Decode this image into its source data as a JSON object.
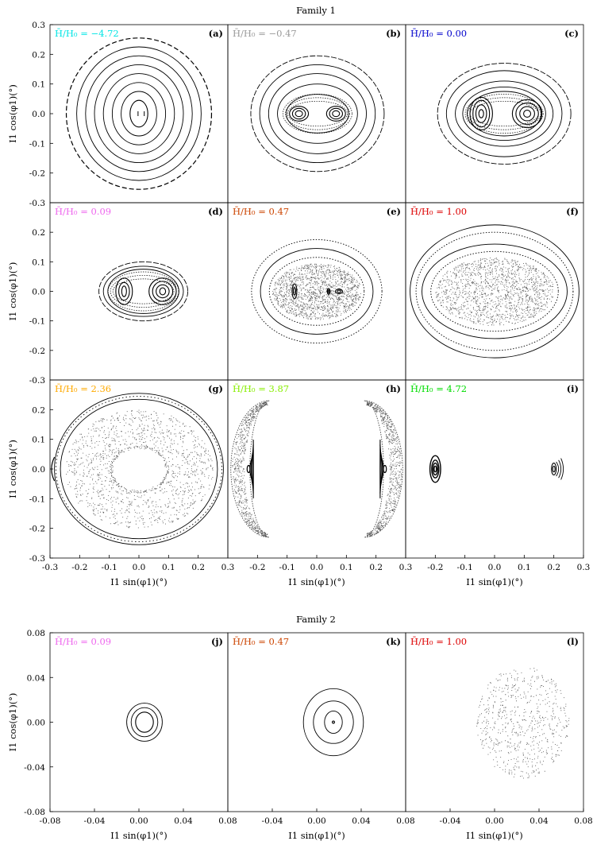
{
  "family1_title": "Family 1",
  "family2_title": "Family 2",
  "chart_data": [
    {
      "type": "scatter",
      "figure": "Family 1",
      "xlabel": "I1 sin(φ1)(°)",
      "ylabel": "I1 cos(φ1)(°)",
      "xlim": [
        -0.3,
        0.3
      ],
      "ylim": [
        -0.3,
        0.3
      ],
      "x_ticks": [
        "-0.3",
        "-0.2",
        "-0.1",
        "0.0",
        "0.1",
        "0.2",
        "0.3"
      ],
      "y_ticks": [
        "-0.3",
        "-0.2",
        "-0.1",
        "0.0",
        "0.1",
        "0.2",
        "0.3"
      ],
      "grid": false,
      "panels": [
        {
          "id": "a",
          "panel_label": "(a)",
          "title": "H̄/H₀ = −4.72",
          "energy": -4.72,
          "title_color": "#00e5e5",
          "kind": "centered",
          "center": [
            0,
            0
          ],
          "curves": [
            [
              0.03,
              0.045
            ],
            [
              0.06,
              0.075
            ],
            [
              0.09,
              0.105
            ],
            [
              0.12,
              0.135
            ],
            [
              0.15,
              0.165
            ],
            [
              0.18,
              0.195
            ],
            [
              0.21,
              0.225
            ]
          ],
          "outer_arcs": [
            [
              0.245,
              0.255
            ]
          ],
          "fixed_points": [
            [
              -0.003,
              0
            ],
            [
              0.018,
              0
            ]
          ]
        },
        {
          "id": "b",
          "panel_label": "(b)",
          "title": "H̄/H₀ = −0.47",
          "energy": -0.47,
          "title_color": "#9a9a9a",
          "kind": "two_island",
          "left": [
            -0.06,
            0
          ],
          "right": [
            0.065,
            0
          ],
          "island_left": [
            [
              0.012,
              0.01
            ],
            [
              0.022,
              0.018
            ],
            [
              0.032,
              0.025
            ]
          ],
          "island_right": [
            [
              0.012,
              0.01
            ],
            [
              0.022,
              0.018
            ],
            [
              0.032,
              0.025
            ]
          ],
          "curves": [
            [
              0.105,
              0.065
            ],
            [
              0.135,
              0.1
            ],
            [
              0.165,
              0.135
            ],
            [
              0.195,
              0.165
            ],
            [
              0.225,
              0.195
            ]
          ]
        },
        {
          "id": "c",
          "panel_label": "(c)",
          "title": "H̄/H₀ = 0.00",
          "energy": 0.0,
          "title_color": "#0000cc",
          "kind": "two_island",
          "left": [
            -0.045,
            0
          ],
          "right": [
            0.11,
            0
          ],
          "island_left": [
            [
              0.008,
              0.014
            ],
            [
              0.018,
              0.03
            ],
            [
              0.028,
              0.045
            ],
            [
              0.038,
              0.055
            ]
          ],
          "island_right": [
            [
              0.012,
              0.012
            ],
            [
              0.025,
              0.024
            ],
            [
              0.038,
              0.036
            ],
            [
              0.05,
              0.047
            ]
          ],
          "curves": [
            [
              0.125,
              0.075
            ],
            [
              0.14,
              0.09
            ],
            [
              0.165,
              0.11
            ],
            [
              0.195,
              0.145
            ],
            [
              0.225,
              0.17
            ]
          ]
        },
        {
          "id": "d",
          "panel_label": "(d)",
          "title": "H̄/H₀ = 0.09",
          "energy": 0.09,
          "title_color": "#ee66ee",
          "kind": "two_island",
          "left": [
            -0.05,
            0
          ],
          "right": [
            0.08,
            0
          ],
          "island_left": [
            [
              0.008,
              0.018
            ],
            [
              0.018,
              0.03
            ],
            [
              0.028,
              0.045
            ]
          ],
          "island_right": [
            [
              0.01,
              0.012
            ],
            [
              0.022,
              0.022
            ],
            [
              0.034,
              0.034
            ],
            [
              0.046,
              0.045
            ]
          ],
          "curves": [
            [
              0.12,
              0.075
            ],
            [
              0.135,
              0.085
            ],
            [
              0.15,
              0.1
            ]
          ]
        },
        {
          "id": "e",
          "panel_label": "(e)",
          "title": "H̄/H₀ = 0.47",
          "energy": 0.47,
          "title_color": "#cc4400",
          "kind": "chaos",
          "chaos_center": [
            0.0,
            0
          ],
          "chaos_r": [
            0.15,
            0.095
          ],
          "islands": [
            [
              -0.075,
              0,
              0.008,
              0.025
            ],
            [
              0.04,
              0,
              0.005,
              0.01
            ],
            [
              0.075,
              0,
              0.012,
              0.008
            ]
          ],
          "curves": [
            [
              0.16,
              0.115
            ],
            [
              0.19,
              0.145
            ],
            [
              0.22,
              0.175
            ]
          ]
        },
        {
          "id": "f",
          "panel_label": "(f)",
          "title": "H̄/H₀ = 1.00",
          "energy": 1.0,
          "title_color": "#dd0000",
          "kind": "chaos",
          "chaos_center": [
            0.0,
            0
          ],
          "chaos_r": [
            0.2,
            0.115
          ],
          "islands": [],
          "curves": [
            [
              0.215,
              0.135
            ],
            [
              0.245,
              0.16
            ],
            [
              0.265,
              0.2
            ],
            [
              0.285,
              0.225
            ]
          ]
        },
        {
          "id": "g",
          "panel_label": "(g)",
          "title": "H̄/H₀ = 2.36",
          "energy": 2.36,
          "title_color": "#ffaa00",
          "kind": "ring_chaos",
          "chaos_center": [
            0.0,
            0
          ],
          "chaos_r": [
            0.25,
            0.2
          ],
          "curves": [
            [
              0.265,
              0.235
            ],
            [
              0.28,
              0.245
            ],
            [
              0.285,
              0.255
            ]
          ],
          "edge_arc": [
            -0.29,
            0
          ]
        },
        {
          "id": "h",
          "panel_label": "(h)",
          "title": "H̄/H₀ = 3.87",
          "energy": 3.87,
          "title_color": "#88ee00",
          "kind": "crescents",
          "left": [
            -0.16,
            0
          ],
          "right": [
            0.16,
            0
          ]
        },
        {
          "id": "i",
          "panel_label": "(i)",
          "title": "H̄/H₀ = 4.72",
          "energy": 4.72,
          "title_color": "#00dd00",
          "kind": "two_small",
          "left": [
            -0.2,
            0
          ],
          "right": [
            0.2,
            0
          ],
          "island_left": [
            [
              0.004,
              0.01
            ],
            [
              0.008,
              0.02
            ],
            [
              0.012,
              0.03
            ],
            [
              0.018,
              0.045
            ]
          ],
          "island_right": [
            [
              0.004,
              0.01
            ],
            [
              0.008,
              0.02
            ]
          ]
        }
      ]
    },
    {
      "type": "scatter",
      "figure": "Family 2",
      "xlabel": "I1 sin(φ1)(°)",
      "ylabel": "I1 cos(φ1)(°)",
      "xlim": [
        -0.08,
        0.08
      ],
      "ylim": [
        -0.08,
        0.08
      ],
      "x_ticks": [
        "-0.08",
        "-0.04",
        "0.00",
        "0.04",
        "0.08"
      ],
      "y_ticks": [
        "-0.08",
        "-0.04",
        "0.00",
        "0.04",
        "0.08"
      ],
      "grid": false,
      "panels": [
        {
          "id": "j",
          "panel_label": "(j)",
          "title": "H̄/H₀ = 0.09",
          "energy": 0.09,
          "title_color": "#ee66ee",
          "kind": "centered",
          "center": [
            0.005,
            0
          ],
          "curves": [
            [
              0.008,
              0.009
            ],
            [
              0.012,
              0.013
            ],
            [
              0.016,
              0.017
            ]
          ]
        },
        {
          "id": "k",
          "panel_label": "(k)",
          "title": "H̄/H₀ = 0.47",
          "energy": 0.47,
          "title_color": "#cc4400",
          "kind": "centered",
          "center": [
            0.015,
            0
          ],
          "curves": [
            [
              0.001,
              0.001
            ],
            [
              0.008,
              0.01
            ],
            [
              0.018,
              0.019
            ],
            [
              0.027,
              0.03
            ]
          ]
        },
        {
          "id": "l",
          "panel_label": "(l)",
          "title": "H̄/H₀ = 1.00",
          "energy": 1.0,
          "title_color": "#dd0000",
          "kind": "chaos_only",
          "chaos_center": [
            0.025,
            0
          ],
          "chaos_r": [
            0.042,
            0.05
          ]
        }
      ]
    }
  ]
}
